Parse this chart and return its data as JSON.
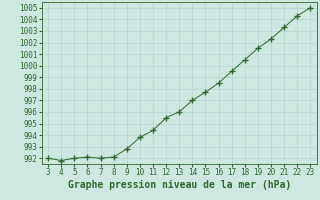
{
  "x": [
    3,
    4,
    5,
    6,
    7,
    8,
    9,
    10,
    11,
    12,
    13,
    14,
    15,
    16,
    17,
    18,
    19,
    20,
    21,
    22,
    23
  ],
  "y": [
    992.0,
    991.8,
    992.0,
    992.1,
    992.0,
    992.1,
    992.8,
    993.8,
    994.4,
    995.5,
    996.0,
    997.0,
    997.7,
    998.5,
    999.5,
    1000.5,
    1001.5,
    1002.3,
    1003.3,
    1004.3,
    1005.0
  ],
  "line_color": "#2d6a2d",
  "marker_color": "#2d6a2d",
  "bg_color": "#cce8e0",
  "grid_color": "#b0d0cc",
  "xlabel": "Graphe pression niveau de la mer (hPa)",
  "xlabel_fontsize": 7,
  "ylabel_ticks": [
    992,
    993,
    994,
    995,
    996,
    997,
    998,
    999,
    1000,
    1001,
    1002,
    1003,
    1004,
    1005
  ],
  "xlim": [
    2.5,
    23.5
  ],
  "ylim": [
    991.5,
    1005.5
  ],
  "tick_fontsize": 5.5,
  "title": ""
}
